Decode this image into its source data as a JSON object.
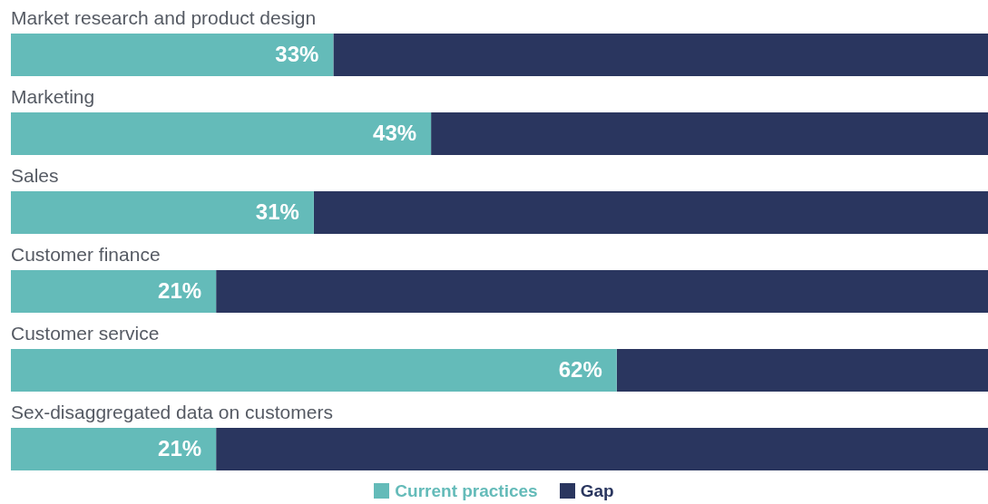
{
  "chart_data": {
    "type": "bar",
    "orientation": "horizontal",
    "stacked": true,
    "categories": [
      "Market research and product design",
      "Marketing",
      "Sales",
      "Customer finance",
      "Customer service",
      "Sex-disaggregated data on customers"
    ],
    "series": [
      {
        "name": "Current practices",
        "color": "#64bbb9",
        "values": [
          33,
          43,
          31,
          21,
          62,
          21
        ],
        "value_labels": [
          "33%",
          "43%",
          "31%",
          "21%",
          "62%",
          "21%"
        ]
      },
      {
        "name": "Gap",
        "color": "#2a365f",
        "values": [
          67,
          57,
          69,
          79,
          38,
          79
        ]
      }
    ],
    "xlim": [
      0,
      100
    ],
    "tick_labels": "y",
    "legend": "bottom"
  }
}
